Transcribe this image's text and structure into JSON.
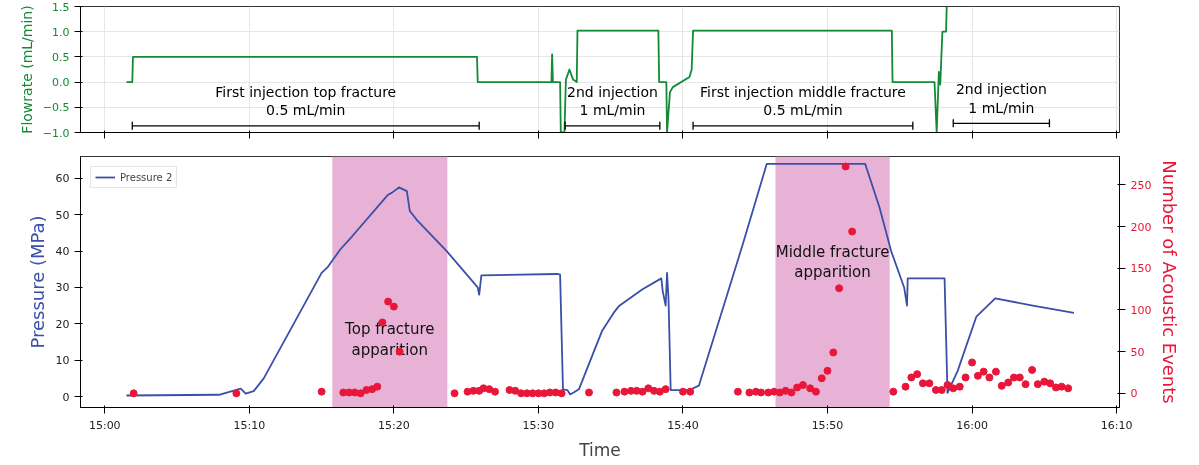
{
  "chart_data": [
    {
      "type": "line",
      "ylabel": "Flowrate (mL/min)",
      "xlim": [
        14.972,
        16.17
      ],
      "xticks": [
        {
          "value": 15.0,
          "label": null
        },
        {
          "value": 15.1667,
          "label": null
        },
        {
          "value": 15.3333,
          "label": null
        },
        {
          "value": 15.5,
          "label": null
        },
        {
          "value": 15.6667,
          "label": null
        },
        {
          "value": 15.8333,
          "label": null
        },
        {
          "value": 16.0,
          "label": null
        },
        {
          "value": 16.1667,
          "label": null
        }
      ],
      "ylim": [
        -1.0,
        1.5
      ],
      "yticks": [
        {
          "value": -1.0,
          "label": "−1.0"
        },
        {
          "value": -0.5,
          "label": "−0.5"
        },
        {
          "value": 0.0,
          "label": "0.0"
        },
        {
          "value": 0.5,
          "label": "0.5"
        },
        {
          "value": 1.0,
          "label": "1.0"
        },
        {
          "value": 1.5,
          "label": "1.5"
        }
      ],
      "tick_labels": "y",
      "grid": true,
      "legend": false,
      "series": [
        {
          "color": "#138a36",
          "x": [
            15.025,
            15.0317,
            15.0325,
            15.4292,
            15.43,
            15.515,
            15.5158,
            15.5167,
            15.525,
            15.5258,
            15.53,
            15.5317,
            15.5358,
            15.54,
            15.5442,
            15.545,
            15.6383,
            15.6392,
            15.6475,
            15.6483,
            15.6517,
            15.655,
            15.6742,
            15.6767,
            15.6783,
            15.9075,
            15.9083,
            15.9567,
            15.9592,
            15.9617,
            15.9633,
            15.9658,
            15.97,
            15.9708
          ],
          "values": [
            0,
            0,
            0.5,
            0.5,
            0,
            0,
            0.55,
            0,
            0,
            -1.0,
            -1.0,
            0.05,
            0.25,
            0.05,
            0,
            1.02,
            1.02,
            0,
            0,
            -1.0,
            -0.2,
            -0.1,
            0.1,
            0.25,
            1.02,
            1.02,
            0,
            0,
            -1.0,
            0.2,
            -0.05,
            1.0,
            1.0,
            1.5
          ]
        },
        {
          "name": "First injection top fracture\n0.5 mL/min",
          "color": "#000000",
          "x": [
            15.0317,
            15.4317
          ],
          "values": [
            -0.87,
            -0.87
          ]
        },
        {
          "name": "2nd injection\n1 mL/min",
          "color": "#000000",
          "x": [
            15.5308,
            15.64
          ],
          "values": [
            -0.87,
            -0.87
          ]
        },
        {
          "name": "First injection middle fracture\n0.5 mL/min",
          "color": "#000000",
          "x": [
            15.6783,
            15.9317
          ],
          "values": [
            -0.87,
            -0.87
          ]
        },
        {
          "name": "2nd injection\n1 mL/min",
          "color": "#000000",
          "x": [
            15.9783,
            16.0892
          ],
          "values": [
            -0.82,
            -0.82
          ]
        }
      ]
    },
    {
      "type": "line",
      "xlabel": "Time",
      "ylabel": "Pressure (MPa)",
      "y2label": "Number of Acoustic Events",
      "xlim": [
        14.972,
        16.17
      ],
      "xticks": [
        {
          "value": 15.0,
          "label": "15:00"
        },
        {
          "value": 15.1667,
          "label": "15:10"
        },
        {
          "value": 15.3333,
          "label": "15:20"
        },
        {
          "value": 15.5,
          "label": "15:30"
        },
        {
          "value": 15.6667,
          "label": "15:40"
        },
        {
          "value": 15.8333,
          "label": "15:50"
        },
        {
          "value": 16.0,
          "label": "16:00"
        },
        {
          "value": 16.1667,
          "label": "16:10"
        }
      ],
      "ylim": [
        -3,
        66
      ],
      "yticks": [
        0,
        10,
        20,
        30,
        40,
        50,
        60
      ],
      "y2lim": [
        -17,
        284
      ],
      "y2ticks": [
        0,
        50,
        100,
        150,
        200,
        250
      ],
      "grid": false,
      "legend": "top left",
      "series": [
        {
          "name": "Pressure 2",
          "color": "#3a4fa8",
          "x": [
            15.025,
            15.1317,
            15.1567,
            15.1625,
            15.1717,
            15.1833,
            15.25,
            15.2567,
            15.2717,
            15.285,
            15.3267,
            15.3308,
            15.3392,
            15.3483,
            15.3517,
            15.36,
            15.3942,
            15.43,
            15.4317,
            15.4342,
            15.5217,
            15.525,
            15.5283,
            15.5333,
            15.5367,
            15.5467,
            15.5633,
            15.5733,
            15.5867,
            15.5933,
            15.62,
            15.6417,
            15.6433,
            15.6467,
            15.6483,
            15.65,
            15.6525,
            15.6742,
            15.685,
            15.7358,
            15.7633,
            15.8767,
            15.8933,
            15.9067,
            15.9217,
            15.925,
            15.9258,
            15.9683,
            15.9717,
            15.9833,
            16.005,
            16.0267,
            16.07,
            16.1175
          ],
          "values": [
            0.3,
            0.5,
            2.2,
            0.8,
            1.5,
            5,
            34,
            35.5,
            40.5,
            44,
            55.5,
            56,
            57.5,
            56.5,
            51,
            48.5,
            40,
            30,
            28,
            33.3,
            33.7,
            33.5,
            2,
            1.8,
            0.6,
            2,
            12,
            18,
            23,
            25,
            29.5,
            32.5,
            29,
            25,
            34,
            27,
            1.8,
            1.8,
            3,
            42,
            64,
            64,
            52,
            40,
            30,
            25,
            32.5,
            32.5,
            1,
            7,
            22,
            27,
            25,
            23
          ]
        },
        {
          "type": "scatter",
          "axis": "y2",
          "marker": "circle",
          "color": "#e8173a",
          "x": [
            15.0333,
            15.1517,
            15.25,
            15.275,
            15.2817,
            15.2883,
            15.295,
            15.3017,
            15.3083,
            15.3142,
            15.32,
            15.3267,
            15.3333,
            15.34,
            15.4033,
            15.4183,
            15.425,
            15.4317,
            15.4367,
            15.4433,
            15.45,
            15.4667,
            15.4733,
            15.48,
            15.4867,
            15.4933,
            15.5,
            15.5067,
            15.5133,
            15.52,
            15.5267,
            15.5583,
            15.59,
            15.5992,
            15.6067,
            15.6133,
            15.62,
            15.6267,
            15.6333,
            15.64,
            15.6467,
            15.6667,
            15.675,
            15.73,
            15.7433,
            15.7508,
            15.7567,
            15.765,
            15.7717,
            15.7783,
            15.785,
            15.7917,
            15.7983,
            15.805,
            15.8133,
            15.82,
            15.8267,
            15.8333,
            15.84,
            15.8467,
            15.8542,
            15.8617,
            15.9092,
            15.9233,
            15.93,
            15.9367,
            15.9433,
            15.9508,
            15.9583,
            15.965,
            15.9717,
            15.9783,
            15.9858,
            15.9925,
            16.0,
            16.0067,
            16.0133,
            16.02,
            16.0275,
            16.0342,
            16.0417,
            16.0483,
            16.055,
            16.0617,
            16.0692,
            16.0758,
            16.0833,
            16.09,
            16.0967,
            16.1033,
            16.1108
          ],
          "values": [
            0,
            0,
            2,
            1,
            1,
            1,
            0,
            4,
            5,
            8,
            85,
            110,
            104,
            50,
            0,
            2,
            3,
            3,
            6,
            5,
            2,
            4,
            3,
            0,
            0,
            0,
            0,
            0,
            1,
            1,
            0,
            1,
            1,
            2,
            3,
            3,
            2,
            6,
            3,
            2,
            5,
            2,
            2,
            2,
            1,
            2,
            1,
            1,
            2,
            1,
            3,
            1,
            7,
            10,
            6,
            2,
            18,
            27,
            49,
            126,
            272,
            194,
            2,
            8,
            19,
            23,
            12,
            12,
            4,
            4,
            10,
            6,
            8,
            19,
            37,
            21,
            26,
            19,
            26,
            9,
            13,
            19,
            19,
            11,
            28,
            11,
            14,
            12,
            7,
            8,
            6
          ]
        }
      ],
      "bands": [
        {
          "axis": "x",
          "from": 15.2623,
          "to": 15.395,
          "color": "#e8b2d6",
          "label": "Top fracture\napparition"
        },
        {
          "axis": "x",
          "from": 15.7733,
          "to": 15.905,
          "color": "#e8b2d6",
          "label": "Middle fracture\napparition"
        }
      ]
    }
  ]
}
